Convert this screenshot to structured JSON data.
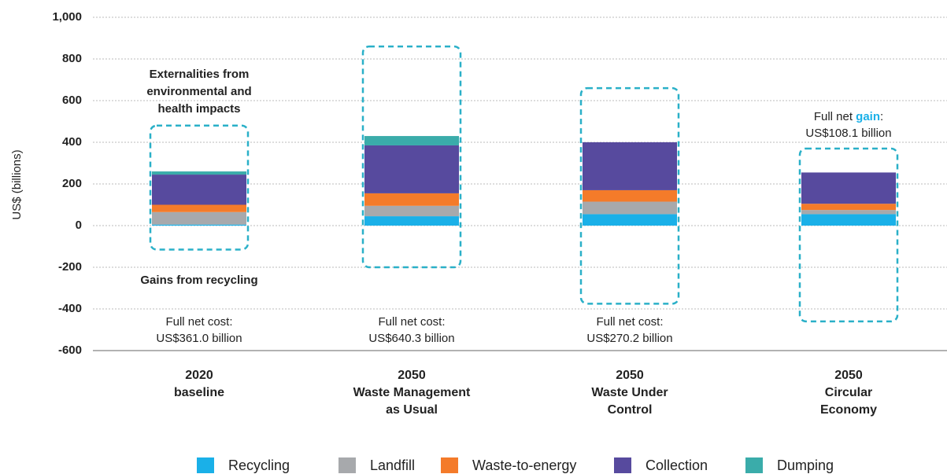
{
  "chart_data": {
    "type": "stacked_bar",
    "y_axis_label": "US$ (billions)",
    "categories": [
      [
        "2020",
        "baseline"
      ],
      [
        "2050",
        "Waste Management",
        "as Usual"
      ],
      [
        "2050",
        "Waste Under",
        "Control"
      ],
      [
        "2050",
        "Circular",
        "Economy"
      ]
    ],
    "series": [
      {
        "name": "Recycling",
        "color": "#1ab0e8",
        "values": [
          5,
          45,
          55,
          55
        ]
      },
      {
        "name": "Landfill",
        "color": "#a7a9ac",
        "values": [
          60,
          50,
          60,
          20
        ]
      },
      {
        "name": "Waste-to-energy",
        "color": "#f47b2a",
        "values": [
          35,
          60,
          55,
          30
        ]
      },
      {
        "name": "Collection",
        "color": "#574a9e",
        "values": [
          145,
          230,
          230,
          150
        ]
      },
      {
        "name": "Dumping",
        "color": "#3aacaa",
        "values": [
          15,
          45,
          0,
          0
        ]
      }
    ],
    "envelope_color": "#2ab0c8",
    "envelope_high": [
      480,
      860,
      660,
      370
    ],
    "envelope_low": [
      -115,
      -200,
      -375,
      -460
    ],
    "net_labels": [
      [
        [
          "Full net cost:"
        ],
        "US$361.0 billion"
      ],
      [
        [
          "Full net cost:"
        ],
        "US$640.3 billion"
      ],
      [
        [
          "Full net cost:"
        ],
        "US$270.2 billion"
      ],
      [
        [
          "Full net ",
          "gain",
          ":"
        ],
        "US$108.1 billion"
      ]
    ],
    "annotations": [
      {
        "lines": [
          "Externalities from",
          "environmental and",
          "health impacts"
        ],
        "color": "#3aacaa"
      },
      {
        "lines": [
          "Gains from recycling"
        ],
        "color": "#1ab0e8"
      }
    ],
    "ylim": [
      -600,
      1000
    ],
    "yticks": [
      -600,
      -400,
      -200,
      0,
      200,
      400,
      600,
      800,
      {
        "value": 1000,
        "label": "1,000"
      }
    ],
    "grid": true
  }
}
